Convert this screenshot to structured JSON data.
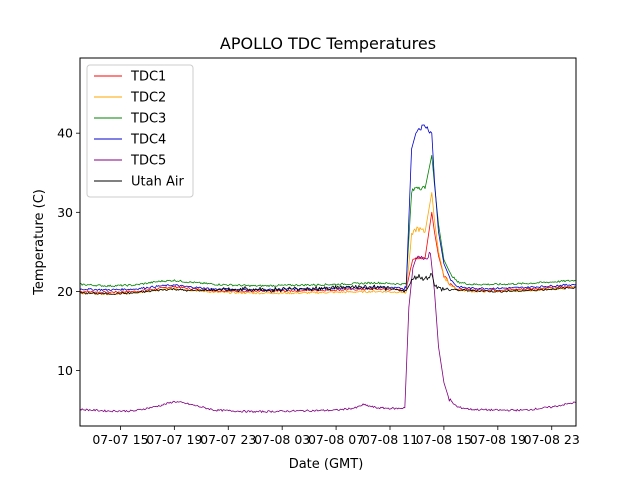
{
  "chart_data": {
    "type": "line",
    "title": "APOLLO TDC Temperatures",
    "xlabel": "Date (GMT)",
    "ylabel": "Temperature (C)",
    "x_unit": "hours since 07-07 00:00 GMT",
    "xlim": [
      12.0,
      48.8
    ],
    "ylim": [
      3,
      49.5
    ],
    "x_ticks": [
      {
        "value": 15,
        "label": "07-07 15"
      },
      {
        "value": 19,
        "label": "07-07 19"
      },
      {
        "value": 23,
        "label": "07-07 23"
      },
      {
        "value": 27,
        "label": "07-08 03"
      },
      {
        "value": 31,
        "label": "07-08 07"
      },
      {
        "value": 35,
        "label": "07-08 11"
      },
      {
        "value": 39,
        "label": "07-08 15"
      },
      {
        "value": 43,
        "label": "07-08 19"
      },
      {
        "value": 47,
        "label": "07-08 23"
      }
    ],
    "y_ticks": [
      {
        "value": 10,
        "label": "10"
      },
      {
        "value": 20,
        "label": "20"
      },
      {
        "value": 30,
        "label": "30"
      },
      {
        "value": 40,
        "label": "40"
      }
    ],
    "legend_position": "top-left",
    "series": [
      {
        "name": "TDC1",
        "color": "#ff0000",
        "x": [
          12,
          14,
          16,
          18,
          19,
          20,
          22,
          25,
          28,
          31,
          34,
          36.2,
          36.6,
          37.0,
          37.6,
          38.1,
          38.3,
          38.6,
          39.0,
          39.5,
          40.0,
          41,
          43,
          45,
          47,
          48.8
        ],
        "y": [
          20.0,
          19.9,
          20.0,
          20.4,
          20.6,
          20.4,
          20.1,
          20.0,
          20.1,
          20.2,
          20.3,
          20.2,
          23.5,
          24.4,
          24.2,
          30.0,
          27.5,
          24.5,
          22.0,
          21.0,
          20.3,
          20.2,
          20.2,
          20.3,
          20.5,
          20.6
        ]
      },
      {
        "name": "TDC2",
        "color": "#ffa500",
        "x": [
          12,
          14,
          16,
          18,
          19,
          20,
          22,
          25,
          28,
          31,
          34,
          36.2,
          36.6,
          37.0,
          37.6,
          38.1,
          38.3,
          38.6,
          39.0,
          39.5,
          40.0,
          41,
          43,
          45,
          47,
          48.8
        ],
        "y": [
          19.8,
          19.7,
          19.8,
          20.2,
          20.4,
          20.2,
          19.9,
          19.8,
          19.8,
          19.9,
          20.0,
          19.9,
          27.0,
          28.0,
          27.5,
          32.5,
          29.0,
          25.0,
          22.0,
          20.8,
          20.2,
          20.0,
          20.0,
          20.1,
          20.3,
          20.5
        ]
      },
      {
        "name": "TDC3",
        "color": "#008000",
        "x": [
          12,
          14,
          16,
          18,
          19,
          20,
          22,
          25,
          28,
          31,
          34,
          36.2,
          36.6,
          37.0,
          37.6,
          38.1,
          38.3,
          38.6,
          39.0,
          39.5,
          40.0,
          41,
          43,
          45,
          47,
          48.8
        ],
        "y": [
          20.9,
          20.7,
          20.8,
          21.3,
          21.4,
          21.2,
          20.9,
          20.7,
          20.8,
          20.9,
          21.1,
          20.9,
          32.5,
          33.3,
          33.0,
          37.2,
          33.5,
          28.5,
          24.0,
          22.2,
          21.2,
          20.9,
          20.9,
          21.0,
          21.2,
          21.4
        ]
      },
      {
        "name": "TDC4",
        "color": "#0000cd",
        "x": [
          12,
          14,
          16,
          18,
          19,
          20,
          22,
          25,
          28,
          31,
          34,
          36.2,
          36.6,
          37.0,
          37.6,
          38.1,
          38.3,
          38.6,
          39.0,
          39.5,
          40.0,
          41,
          43,
          45,
          47,
          48.8
        ],
        "y": [
          20.3,
          20.2,
          20.3,
          20.7,
          20.8,
          20.6,
          20.3,
          20.2,
          20.3,
          20.4,
          20.5,
          20.4,
          38.0,
          40.5,
          41.0,
          40.0,
          34.0,
          27.5,
          23.5,
          21.5,
          20.6,
          20.4,
          20.4,
          20.5,
          20.7,
          20.9
        ]
      },
      {
        "name": "TDC5",
        "color": "#800080",
        "x": [
          12,
          14,
          16,
          18,
          19,
          20,
          22,
          25,
          28,
          31,
          32.5,
          33,
          34,
          35.5,
          36.1,
          36.4,
          36.7,
          37.0,
          37.5,
          38.0,
          38.3,
          38.6,
          39.0,
          39.4,
          40.0,
          41,
          43,
          45,
          47,
          48.8
        ],
        "y": [
          5.1,
          4.9,
          4.9,
          5.6,
          6.1,
          5.8,
          5.0,
          4.8,
          4.9,
          5.0,
          5.3,
          5.7,
          5.3,
          5.2,
          5.3,
          18.0,
          23.0,
          24.5,
          24.0,
          24.8,
          20.0,
          13.0,
          8.5,
          6.3,
          5.4,
          5.1,
          5.0,
          5.0,
          5.4,
          6.0
        ]
      },
      {
        "name": "Utah Air",
        "color": "#000000",
        "x": [
          12,
          14,
          16,
          18,
          19,
          20,
          22,
          24,
          26,
          28,
          30,
          32,
          33,
          34,
          35,
          36.2,
          36.6,
          37.0,
          37.6,
          38.1,
          38.3,
          38.5,
          39.0,
          39.8,
          41,
          43,
          45,
          47,
          48.8
        ],
        "y": [
          19.8,
          19.7,
          19.8,
          20.2,
          20.3,
          20.1,
          20.2,
          20.3,
          20.2,
          20.3,
          20.4,
          20.6,
          20.5,
          20.5,
          20.3,
          20.1,
          21.3,
          22.0,
          21.6,
          22.2,
          21.0,
          20.4,
          20.3,
          20.2,
          20.1,
          20.0,
          20.1,
          20.3,
          20.5
        ]
      }
    ]
  }
}
